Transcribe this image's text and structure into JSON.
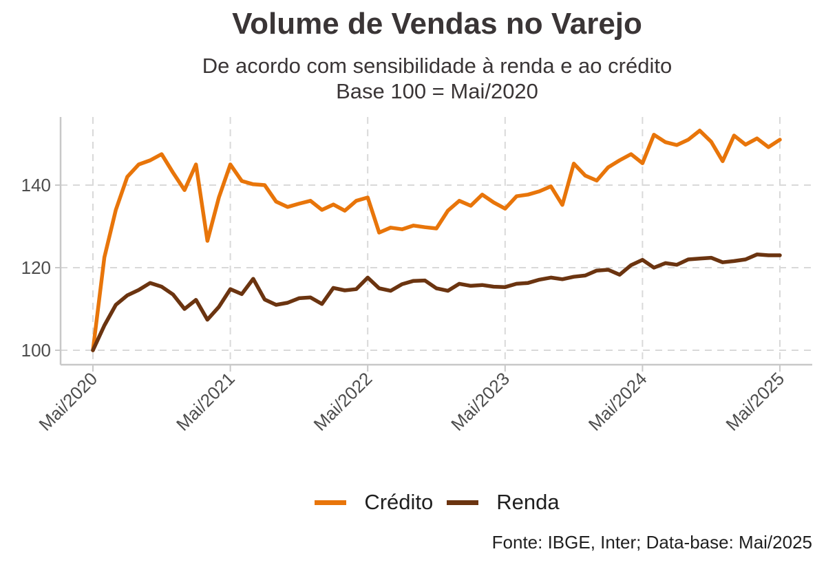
{
  "header": {
    "title": "Volume de Vendas no Varejo",
    "subtitle_line1": "De acordo com sensibilidade à renda e ao crédito",
    "subtitle_line2": "Base 100 = Mai/2020"
  },
  "legend": {
    "credito_label": "Crédito",
    "renda_label": "Renda"
  },
  "footer": {
    "source": "Fonte: IBGE, Inter; Data-base: Mai/2025"
  },
  "colors": {
    "credito": "#E8750A",
    "renda": "#6B3410",
    "grid": "#d9d9d9",
    "axis": "#c8c8c8"
  },
  "chart_data": {
    "type": "line",
    "title": "Volume de Vendas no Varejo",
    "x_tick_labels": [
      "Mai/2020",
      "Mai/2021",
      "Mai/2022",
      "Mai/2023",
      "Mai/2024",
      "Mai/2025"
    ],
    "x_range": [
      "2020-05",
      "2025-05"
    ],
    "y_ticks": [
      100,
      120,
      140
    ],
    "ylim": [
      96.5,
      156.5
    ],
    "grid": true,
    "legend_position": "bottom",
    "x": [
      "2020-05",
      "2020-06",
      "2020-07",
      "2020-08",
      "2020-09",
      "2020-10",
      "2020-11",
      "2020-12",
      "2021-01",
      "2021-02",
      "2021-03",
      "2021-04",
      "2021-05",
      "2021-06",
      "2021-07",
      "2021-08",
      "2021-09",
      "2021-10",
      "2021-11",
      "2021-12",
      "2022-01",
      "2022-02",
      "2022-03",
      "2022-04",
      "2022-05",
      "2022-06",
      "2022-07",
      "2022-08",
      "2022-09",
      "2022-10",
      "2022-11",
      "2022-12",
      "2023-01",
      "2023-02",
      "2023-03",
      "2023-04",
      "2023-05",
      "2023-06",
      "2023-07",
      "2023-08",
      "2023-09",
      "2023-10",
      "2023-11",
      "2023-12",
      "2024-01",
      "2024-02",
      "2024-03",
      "2024-04",
      "2024-05",
      "2024-06",
      "2024-07",
      "2024-08",
      "2024-09",
      "2024-10",
      "2024-11",
      "2024-12",
      "2025-01",
      "2025-02",
      "2025-03",
      "2025-04",
      "2025-05"
    ],
    "series": [
      {
        "name": "Crédito",
        "values": [
          100,
          122.5,
          134,
          142,
          145,
          146,
          147.5,
          143,
          138.8,
          145,
          126.5,
          137,
          145,
          141,
          140.2,
          140,
          136,
          134.7,
          135.5,
          136.2,
          134,
          135.3,
          133.8,
          136.2,
          137,
          128.5,
          129.7,
          129.3,
          130.2,
          129.8,
          129.5,
          133.8,
          136.2,
          135,
          137.7,
          135.8,
          134.3,
          137.3,
          137.7,
          138.5,
          139.7,
          135.2,
          145.2,
          142.3,
          141.1,
          144.3,
          146,
          147.5,
          145.3,
          152.2,
          150.4,
          149.7,
          151,
          153.2,
          150.5,
          145.8,
          152,
          149.8,
          151.3,
          149.2,
          151
        ]
      },
      {
        "name": "Renda",
        "values": [
          100,
          106,
          111,
          113.3,
          114.6,
          116.3,
          115.4,
          113.5,
          110,
          112.2,
          107.4,
          110.5,
          114.8,
          113.6,
          117.3,
          112.3,
          111,
          111.5,
          112.6,
          112.8,
          111.2,
          115.1,
          114.5,
          114.8,
          117.6,
          115,
          114.4,
          116,
          116.8,
          116.9,
          115,
          114.4,
          116.1,
          115.6,
          115.8,
          115.4,
          115.3,
          116.1,
          116.3,
          117.1,
          117.6,
          117.2,
          117.8,
          118.1,
          119.3,
          119.5,
          118.3,
          120.6,
          121.9,
          120,
          121.1,
          120.7,
          122,
          122.2,
          122.4,
          121.3,
          121.6,
          122,
          123.2,
          123,
          123
        ]
      }
    ]
  }
}
